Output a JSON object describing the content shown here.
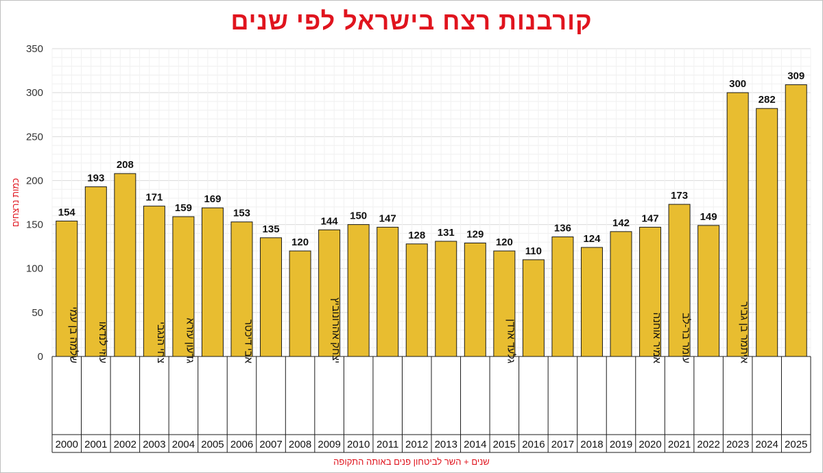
{
  "chart_data": {
    "type": "bar",
    "title": "קורבנות רצח בישראל לפי שנים",
    "ylabel": "כמות נרצחים",
    "xlabel": "שנים + השר לביטחון פנים באותה התקופה",
    "ylim": [
      0,
      350
    ],
    "yticks": [
      0,
      50,
      100,
      150,
      200,
      250,
      300,
      350
    ],
    "grid": true,
    "bar_color": "#e8bd30",
    "title_color": "#e0141e",
    "categories": [
      "2000",
      "2001",
      "2002",
      "2003",
      "2004",
      "2005",
      "2006",
      "2007",
      "2008",
      "2009",
      "2010",
      "2011",
      "2012",
      "2013",
      "2014",
      "2015",
      "2016",
      "2017",
      "2018",
      "2019",
      "2020",
      "2021",
      "2022",
      "2023",
      "2024",
      "2025"
    ],
    "values": [
      154,
      193,
      208,
      171,
      159,
      169,
      153,
      135,
      120,
      144,
      150,
      147,
      128,
      131,
      129,
      120,
      110,
      136,
      124,
      142,
      147,
      173,
      149,
      300,
      282,
      309
    ],
    "ministers": [
      "שלמה בן עמי",
      "עוזי לנדאו",
      "",
      "צחי הנגבי",
      "גדעון עזרא",
      "",
      "אבי דיכטר",
      "",
      "",
      "יצחק אהרונוביץ",
      "",
      "",
      "",
      "",
      "",
      "גלעד ארדן",
      "",
      "",
      "",
      "",
      "אמיר אוחנה",
      "עומר בר-לב",
      "",
      "איתמר בן גביר",
      "",
      ""
    ]
  }
}
